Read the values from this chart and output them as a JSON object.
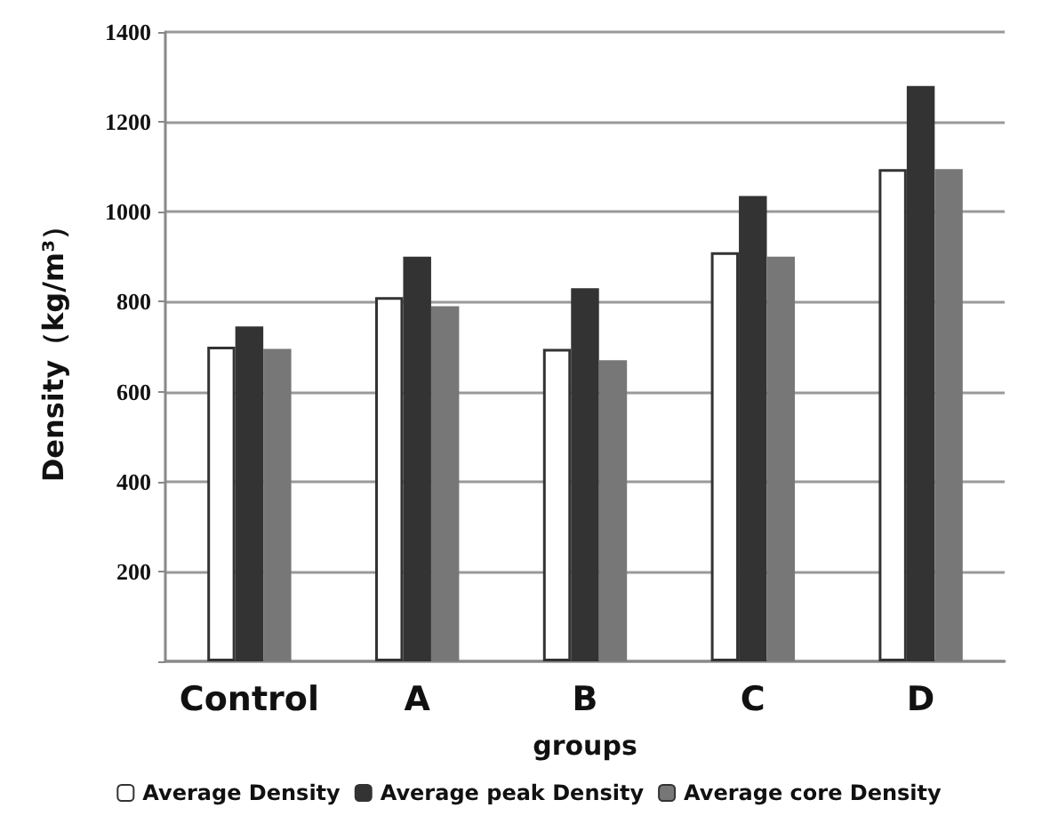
{
  "chart_data": {
    "type": "bar",
    "xlabel": "groups",
    "ylabel": "Density（kg/m³）",
    "categories": [
      "Control",
      "A",
      "B",
      "C",
      "D"
    ],
    "series": [
      {
        "name": "Average Density",
        "color": "#ffffff",
        "values": [
          700,
          810,
          695,
          910,
          1095
        ]
      },
      {
        "name": "Average peak Density",
        "color": "#333333",
        "values": [
          745,
          900,
          830,
          1035,
          1280
        ]
      },
      {
        "name": "Average core Density",
        "color": "#777777",
        "values": [
          695,
          790,
          670,
          900,
          1095
        ]
      }
    ],
    "ylim": [
      0,
      1400
    ],
    "yticks": [
      {
        "value": 0,
        "label": null
      },
      200,
      400,
      600,
      800,
      1000,
      1200,
      1400
    ],
    "grid": "y",
    "legend": "bottom"
  }
}
